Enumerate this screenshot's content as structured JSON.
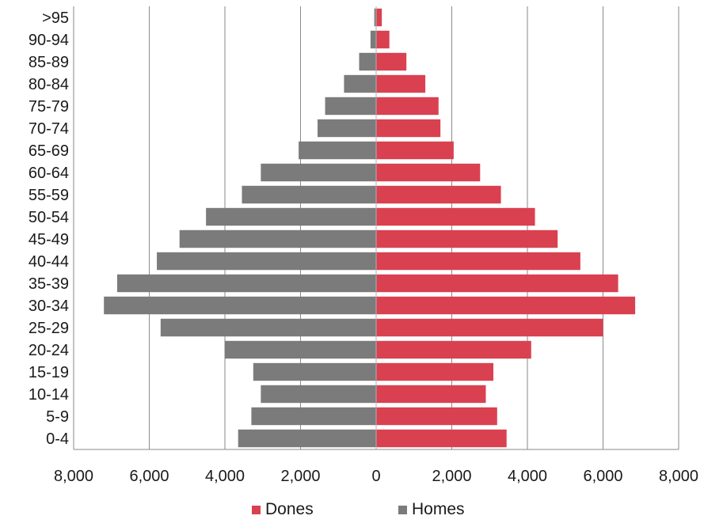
{
  "chart_data": {
    "type": "bar",
    "orientation": "horizontal-population-pyramid",
    "categories": [
      ">95",
      "90-94",
      "85-89",
      "80-84",
      "75-79",
      "70-74",
      "65-69",
      "60-64",
      "55-59",
      "50-54",
      "45-49",
      "40-44",
      "35-39",
      "30-34",
      "25-29",
      "20-24",
      "15-19",
      "10-14",
      "5-9",
      "0-4"
    ],
    "series": [
      {
        "name": "Dones",
        "side": "right",
        "color": "#d94150",
        "values": [
          150,
          350,
          800,
          1300,
          1650,
          1700,
          2050,
          2750,
          3300,
          4200,
          4800,
          5400,
          6400,
          6850,
          6000,
          4100,
          3100,
          2900,
          3200,
          3450
        ]
      },
      {
        "name": "Homes",
        "side": "left",
        "color": "#7b7b7b",
        "values": [
          50,
          150,
          450,
          850,
          1350,
          1550,
          2050,
          3050,
          3550,
          4500,
          5200,
          5800,
          6850,
          7200,
          5700,
          4000,
          3250,
          3050,
          3300,
          3650
        ]
      }
    ],
    "xlim": [
      -8000,
      8000
    ],
    "x_ticks": [
      -8000,
      -6000,
      -4000,
      -2000,
      0,
      2000,
      4000,
      6000,
      8000
    ],
    "x_tick_labels": [
      "8,000",
      "6,000",
      "4,000",
      "2,000",
      "0",
      "2,000",
      "4,000",
      "6,000",
      "8,000"
    ],
    "grid": "vertical",
    "legend_position": "bottom"
  },
  "legend": {
    "items": [
      {
        "label": "Dones",
        "color": "#d94150"
      },
      {
        "label": "Homes",
        "color": "#7b7b7b"
      }
    ]
  }
}
